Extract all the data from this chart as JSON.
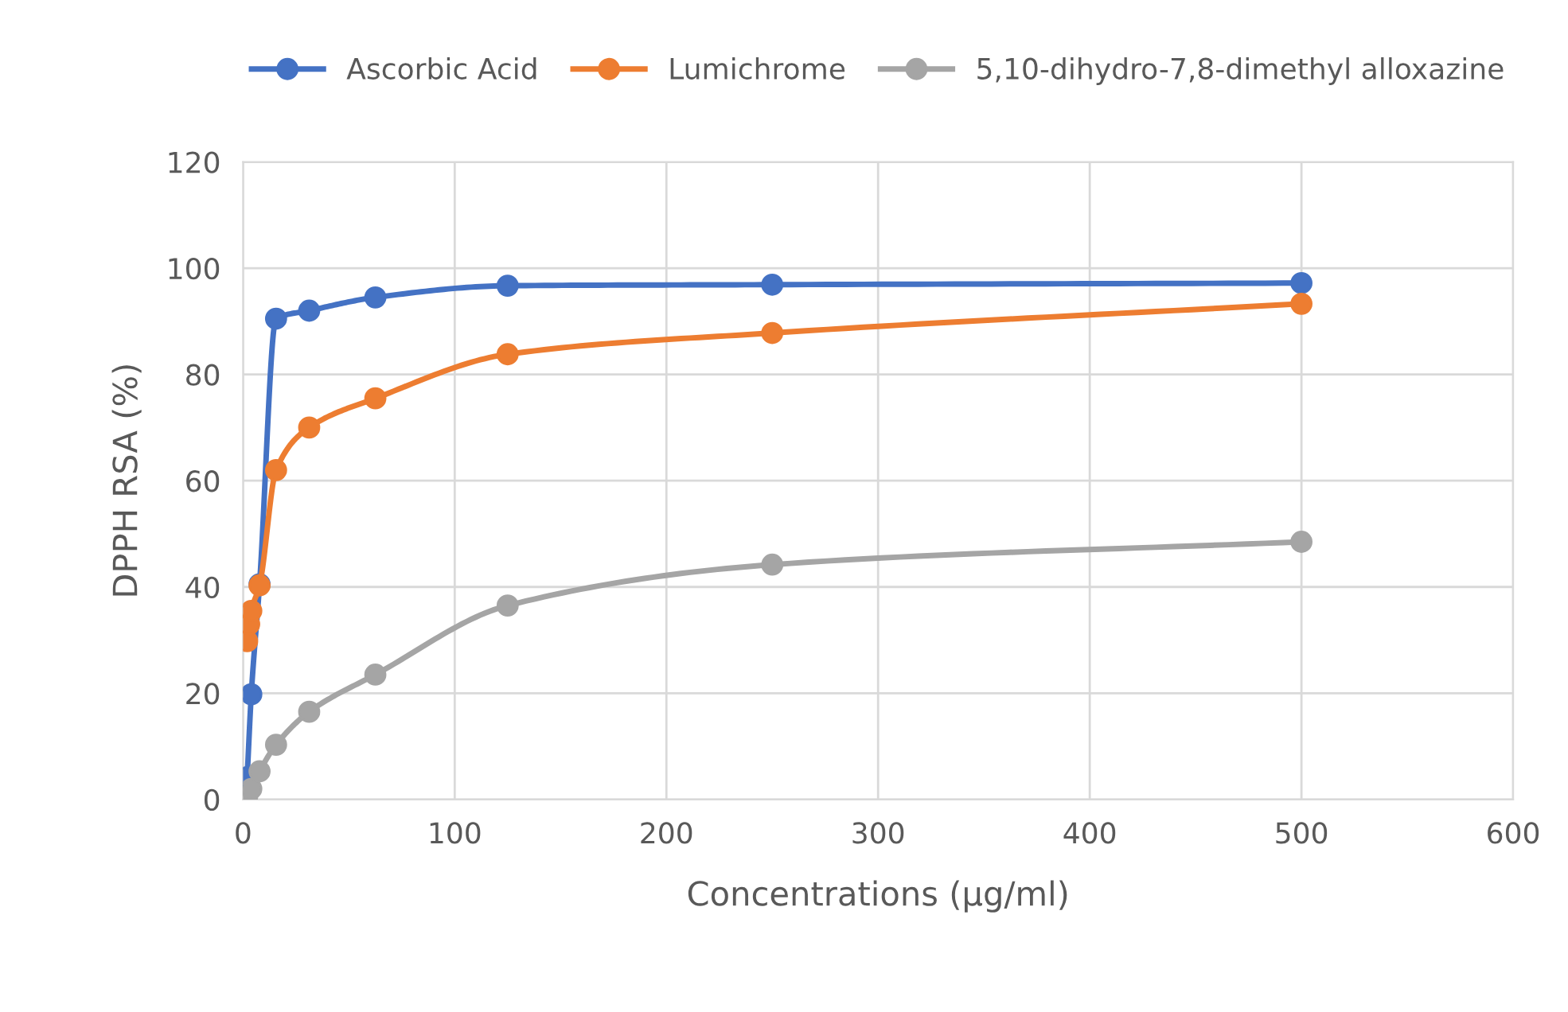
{
  "chart_data": {
    "type": "line",
    "xlabel": "Concentrations (µg/ml)",
    "ylabel": "DPPH RSA (%)",
    "x": [
      1.95,
      3.9,
      7.8,
      15.6,
      31.25,
      62.5,
      125,
      250,
      500
    ],
    "series": [
      {
        "name": "Ascorbic Acid",
        "color": "#4472c4",
        "values": [
          4.2,
          19.8,
          40.5,
          90.5,
          92,
          94.5,
          96.7,
          96.9,
          97.2
        ]
      },
      {
        "name": "Lumichrome",
        "color": "#ed7d31",
        "x": [
          1.95,
          2.9,
          3.9,
          7.8,
          15.6,
          31.25,
          62.5,
          125,
          250,
          500
        ],
        "values": [
          29.8,
          33,
          35.5,
          40.3,
          62,
          70,
          75.5,
          83.8,
          87.8,
          93.3
        ]
      },
      {
        "name": "5,10-dihydro-7,8-dimethyl alloxazine",
        "color": "#a5a5a5",
        "values": [
          0.6,
          2,
          5.3,
          10.3,
          16.5,
          23.5,
          36.5,
          44.2,
          48.5
        ]
      }
    ],
    "xlim": [
      0,
      600
    ],
    "xticks": [
      0,
      100,
      200,
      300,
      400,
      500,
      600
    ],
    "ylim": [
      0,
      120
    ],
    "yticks": [
      0,
      20,
      40,
      60,
      80,
      100,
      120
    ],
    "grid": true,
    "legend": "top",
    "marker": "circle",
    "line_style": "solid"
  }
}
